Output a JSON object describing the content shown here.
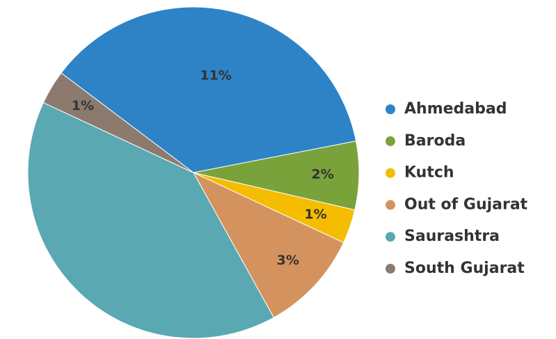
{
  "chart_data": {
    "type": "pie",
    "categories": [
      "Ahmedabad",
      "Baroda",
      "Kutch",
      "Out of Gujarat",
      "Saurashtra",
      "South Gujarat"
    ],
    "values": [
      11,
      2,
      1,
      3,
      12,
      1
    ],
    "value_labels": [
      "11%",
      "2%",
      "1%",
      "3%",
      null,
      "1%"
    ],
    "colors": [
      "#2e83c6",
      "#7aa23a",
      "#f5bd00",
      "#d4935e",
      "#5aa8b2",
      "#8c7a6f"
    ],
    "legend": "right"
  }
}
